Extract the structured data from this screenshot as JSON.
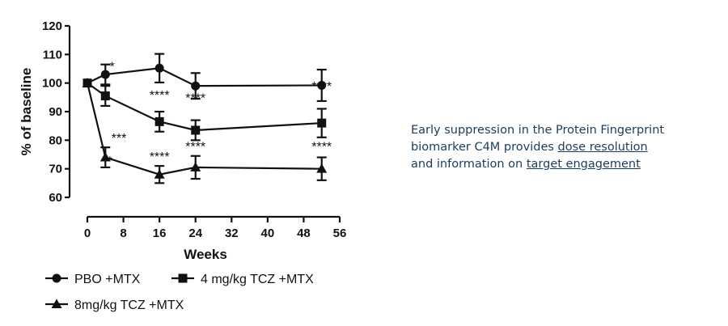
{
  "chart_data": {
    "type": "line",
    "xlabel": "Weeks",
    "ylabel": "% of baseline",
    "xlim": [
      0,
      56
    ],
    "ylim": [
      60,
      120
    ],
    "xticks": [
      "0",
      "8",
      "16",
      "24",
      "32",
      "40",
      "48",
      "56"
    ],
    "yticks": [
      "60",
      "70",
      "80",
      "90",
      "100",
      "110",
      "120"
    ],
    "grid": false,
    "legend_position": "bottom-left",
    "series": [
      {
        "name": "PBO +MTX",
        "marker": "circle",
        "x": [
          0,
          4,
          16,
          24,
          52
        ],
        "y": [
          100,
          103,
          105.2,
          99,
          99.2
        ],
        "err": [
          0,
          3.5,
          5,
          4.5,
          5.5
        ]
      },
      {
        "name": "4 mg/kg TCZ +MTX",
        "marker": "square",
        "x": [
          0,
          4,
          16,
          24,
          52
        ],
        "y": [
          100,
          95.5,
          86.5,
          83.5,
          86
        ],
        "err": [
          0,
          3.5,
          3.5,
          3.5,
          5
        ]
      },
      {
        "name": "8mg/kg TCZ +MTX",
        "marker": "triangle",
        "x": [
          0,
          4,
          16,
          24,
          52
        ],
        "y": [
          100,
          74,
          68,
          70.5,
          70
        ],
        "err": [
          0,
          3.5,
          3,
          4,
          4
        ]
      }
    ],
    "annotations": [
      {
        "text": "*",
        "x": 5.5,
        "y": 106
      },
      {
        "text": "****",
        "x": 16,
        "y": 96
      },
      {
        "text": "****",
        "x": 24,
        "y": 95
      },
      {
        "text": "****",
        "x": 52,
        "y": 99
      },
      {
        "text": "***",
        "x": 7,
        "y": 81
      },
      {
        "text": "*",
        "x": 5,
        "y": 73
      },
      {
        "text": "****",
        "x": 16,
        "y": 74.5
      },
      {
        "text": "****",
        "x": 24,
        "y": 78
      },
      {
        "text": "****",
        "x": 52,
        "y": 78
      }
    ]
  },
  "caption": {
    "line1": "Early suppression in the Protein Fingerprint",
    "line2_pre": "biomarker C4M provides ",
    "line2_link": "dose resolution",
    "line3_pre": "and information on ",
    "line3_link": "target engagement"
  }
}
